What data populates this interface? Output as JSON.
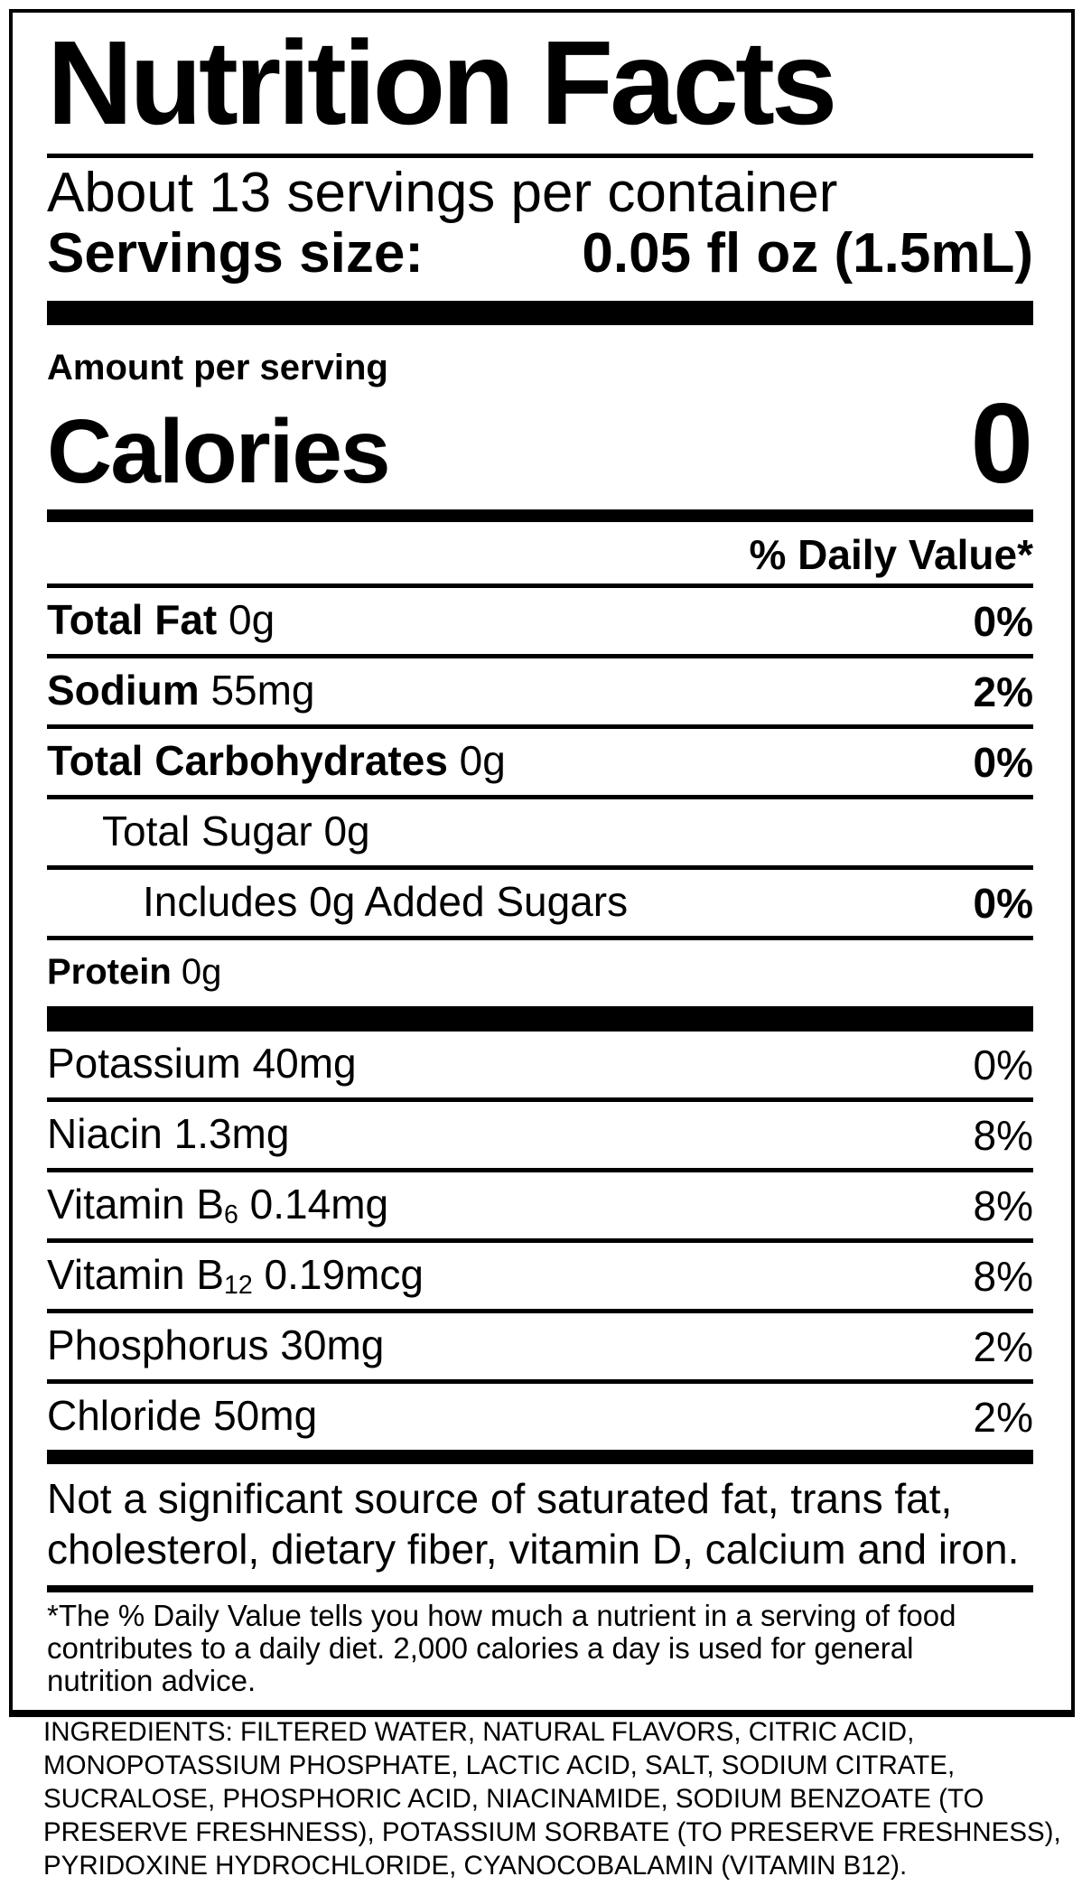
{
  "colors": {
    "text": "#000000",
    "background": "#ffffff"
  },
  "label": {
    "title": "Nutrition Facts",
    "servings_per_container": "About 13 servings per container",
    "serving_size": {
      "label": "Servings size:",
      "value": "0.05 fl oz (1.5mL)"
    },
    "amount_per_serving": "Amount per serving",
    "calories": {
      "label": "Calories",
      "value": "0"
    },
    "daily_value_header": "% Daily Value*",
    "nutrients": [
      {
        "bold": "Total Fat",
        "text": " 0g",
        "sub": "",
        "after": "",
        "percent": "0%"
      },
      {
        "bold": "Sodium",
        "text": " 55mg",
        "sub": "",
        "after": "",
        "percent": "2%"
      },
      {
        "bold": "Total Carbohydrates",
        "text": " 0g",
        "sub": "",
        "after": "",
        "percent": "0%"
      },
      {
        "bold": "",
        "text": "Total Sugar 0g",
        "sub": "",
        "after": "",
        "percent": ""
      },
      {
        "bold": "",
        "text": "Includes 0g Added Sugars",
        "sub": "",
        "after": "",
        "percent": "0%"
      },
      {
        "bold": "Protein",
        "text": " 0g",
        "sub": "",
        "after": "",
        "percent": ""
      },
      {
        "bold": "",
        "text": "Potassium 40mg",
        "sub": "",
        "after": "",
        "percent": "0%"
      },
      {
        "bold": "",
        "text": "Niacin 1.3mg",
        "sub": "",
        "after": "",
        "percent": "8%"
      },
      {
        "bold": "",
        "text": "Vitamin B",
        "sub": "6",
        "after": " 0.14mg",
        "percent": "8%"
      },
      {
        "bold": "",
        "text": "Vitamin B",
        "sub": "12",
        "after": " 0.19mcg",
        "percent": "8%"
      },
      {
        "bold": "",
        "text": "Phosphorus 30mg",
        "sub": "",
        "after": "",
        "percent": "2%"
      },
      {
        "bold": "",
        "text": "Chloride 50mg",
        "sub": "",
        "after": "",
        "percent": "2%"
      }
    ],
    "disclaimer_lines": [
      "Not a significant source of saturated fat, trans fat,",
      "cholesterol, dietary fiber, vitamin D, calcium and iron."
    ],
    "footnote_lines": [
      "*The % Daily Value tells you how much a nutrient in a serving of food",
      "contributes to a daily diet. 2,000 calories a day is used for general",
      "nutrition advice."
    ],
    "ingredients_lines": [
      "INGREDIENTS: FILTERED WATER, NATURAL FLAVORS, CITRIC ACID,",
      "MONOPOTASSIUM PHOSPHATE, LACTIC ACID, SALT, SODIUM CITRATE,",
      "SUCRALOSE, PHOSPHORIC ACID, NIACINAMIDE, SODIUM BENZOATE (TO",
      "PRESERVE FRESHNESS), POTASSIUM SORBATE (TO PRESERVE FRESHNESS),",
      "PYRIDOXINE HYDROCHLORIDE, CYANOCOBALAMIN (VITAMIN B12)."
    ]
  }
}
